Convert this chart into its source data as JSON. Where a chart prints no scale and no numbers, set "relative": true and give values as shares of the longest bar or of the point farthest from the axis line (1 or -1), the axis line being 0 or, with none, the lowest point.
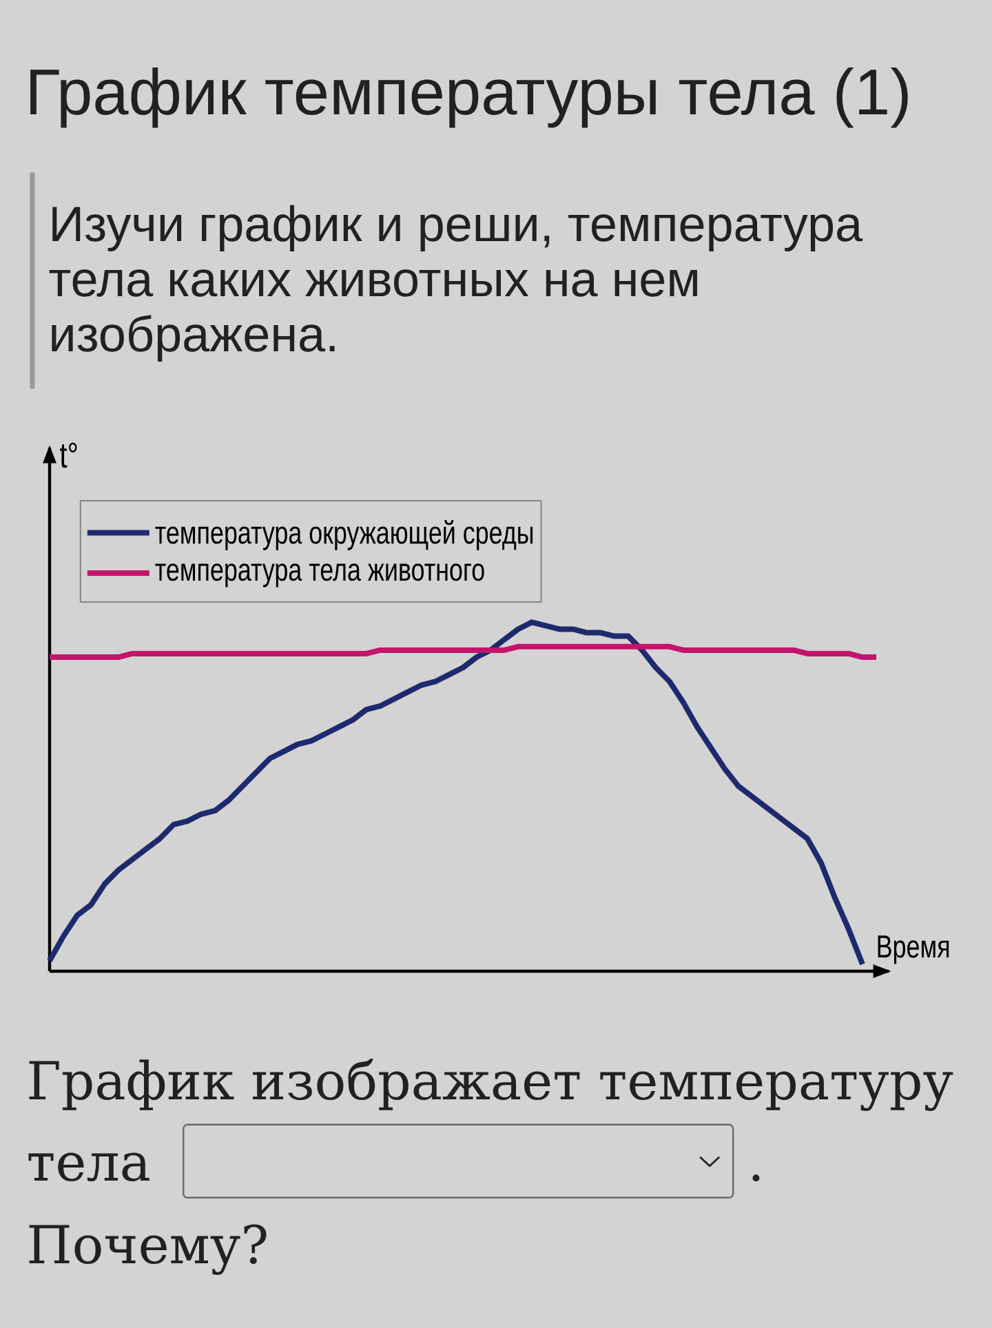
{
  "chart_data": {
    "type": "line",
    "title": "График температуры тела (1)",
    "subtitle": "Изучи график и реши, температура тела каких животных на нем изображена.",
    "xlabel": "Время",
    "ylabel": "t°",
    "relative": true,
    "legend": "top left",
    "marker": "none",
    "line_style": "solid",
    "categories": [
      null,
      null,
      null,
      null,
      null,
      null,
      null,
      null,
      null,
      null,
      null,
      null,
      null,
      null,
      null,
      null,
      null,
      null,
      null,
      null,
      null,
      null,
      null,
      null,
      null,
      null,
      null,
      null,
      null,
      null,
      null,
      null,
      null,
      null,
      null,
      null,
      null,
      null,
      null,
      null,
      null,
      null,
      null,
      null,
      null,
      null,
      null,
      null,
      null,
      null,
      null,
      null,
      null,
      null,
      null,
      null,
      null,
      null,
      null,
      null,
      null
    ],
    "series": [
      {
        "name": "температура окружающей среды",
        "color": "#1e2a6e",
        "values": [
          0.03,
          0.1,
          0.16,
          0.19,
          0.25,
          0.29,
          0.32,
          0.35,
          0.38,
          0.42,
          0.43,
          0.45,
          0.46,
          0.49,
          0.53,
          0.57,
          0.61,
          0.63,
          0.65,
          0.66,
          0.68,
          0.7,
          0.72,
          0.75,
          0.76,
          0.78,
          0.8,
          0.82,
          0.83,
          0.85,
          0.87,
          0.9,
          0.92,
          0.95,
          0.98,
          1,
          0.99,
          0.98,
          0.98,
          0.97,
          0.97,
          0.96,
          0.96,
          0.92,
          0.87,
          0.83,
          0.77,
          0.7,
          0.64,
          0.58,
          0.53,
          0.5,
          0.47,
          0.44,
          0.41,
          0.38,
          0.31,
          0.21,
          0.12,
          0.02,
          null
        ]
      },
      {
        "name": "температура тела животного",
        "color": "#c4146c",
        "values": [
          0.9,
          0.9,
          0.9,
          0.9,
          0.9,
          0.9,
          0.91,
          0.91,
          0.91,
          0.91,
          0.91,
          0.91,
          0.91,
          0.91,
          0.91,
          0.91,
          0.91,
          0.91,
          0.91,
          0.91,
          0.91,
          0.91,
          0.91,
          0.91,
          0.92,
          0.92,
          0.92,
          0.92,
          0.92,
          0.92,
          0.92,
          0.92,
          0.92,
          0.92,
          0.93,
          0.93,
          0.93,
          0.93,
          0.93,
          0.93,
          0.93,
          0.93,
          0.93,
          0.93,
          0.93,
          0.93,
          0.92,
          0.92,
          0.92,
          0.92,
          0.92,
          0.92,
          0.92,
          0.92,
          0.92,
          0.91,
          0.91,
          0.91,
          0.91,
          0.9,
          0.9
        ]
      }
    ],
    "annotations": [
      "График изображает температуру",
      "тела",
      ".",
      "Почему?"
    ]
  }
}
